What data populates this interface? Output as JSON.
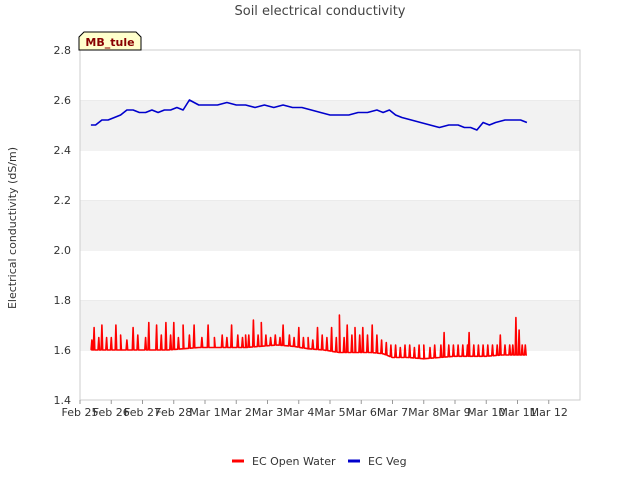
{
  "chart_data": {
    "type": "line",
    "title": "Soil electrical conductivity",
    "ylabel": "Electrical conductivity (dS/m)",
    "xlabel": "",
    "site_label": "MB_tule",
    "xlim": [
      0,
      16
    ],
    "ylim": [
      1.4,
      2.8
    ],
    "yticks": [
      1.4,
      1.6,
      1.8,
      2.0,
      2.2,
      2.4,
      2.6,
      2.8
    ],
    "ytick_labels": [
      "1.4",
      "1.6",
      "1.8",
      "2.0",
      "2.2",
      "2.4",
      "2.6",
      "2.8"
    ],
    "xtick_labels": [
      "Feb 25",
      "Feb 26",
      "Feb 27",
      "Feb 28",
      "Mar 1",
      "Mar 2",
      "Mar 3",
      "Mar 4",
      "Mar 5",
      "Mar 6",
      "Mar 7",
      "Mar 8",
      "Mar 9",
      "Mar 10",
      "Mar 11",
      "Mar 12"
    ],
    "grid_bands": true,
    "legend_position": "bottom-center",
    "series": [
      {
        "name": "EC Open Water",
        "color": "#ff0000",
        "x": [
          0.35,
          0.8,
          1.3,
          1.8,
          2.3,
          2.8,
          3.3,
          3.8,
          4.3,
          4.8,
          5.3,
          5.8,
          6.3,
          6.8,
          7.3,
          7.8,
          8.3,
          8.8,
          9.3,
          9.7,
          10.0,
          10.5,
          11.0,
          11.5,
          12.0,
          12.5,
          13.0,
          13.5,
          14.0,
          14.3
        ],
        "values": [
          1.6,
          1.6,
          1.6,
          1.6,
          1.6,
          1.6,
          1.605,
          1.61,
          1.61,
          1.61,
          1.61,
          1.615,
          1.62,
          1.615,
          1.605,
          1.6,
          1.59,
          1.59,
          1.59,
          1.585,
          1.57,
          1.57,
          1.565,
          1.57,
          1.575,
          1.575,
          1.575,
          1.58,
          1.58,
          1.58
        ],
        "spikes": [
          [
            0.38,
            1.64
          ],
          [
            0.45,
            1.69
          ],
          [
            0.6,
            1.65
          ],
          [
            0.7,
            1.7
          ],
          [
            0.85,
            1.65
          ],
          [
            1.0,
            1.65
          ],
          [
            1.15,
            1.7
          ],
          [
            1.3,
            1.66
          ],
          [
            1.5,
            1.64
          ],
          [
            1.7,
            1.69
          ],
          [
            1.85,
            1.66
          ],
          [
            2.1,
            1.65
          ],
          [
            2.2,
            1.71
          ],
          [
            2.45,
            1.7
          ],
          [
            2.6,
            1.66
          ],
          [
            2.75,
            1.71
          ],
          [
            2.9,
            1.66
          ],
          [
            3.0,
            1.71
          ],
          [
            3.15,
            1.65
          ],
          [
            3.3,
            1.7
          ],
          [
            3.5,
            1.66
          ],
          [
            3.65,
            1.7
          ],
          [
            3.9,
            1.65
          ],
          [
            4.1,
            1.7
          ],
          [
            4.3,
            1.65
          ],
          [
            4.55,
            1.66
          ],
          [
            4.7,
            1.65
          ],
          [
            4.85,
            1.7
          ],
          [
            5.05,
            1.66
          ],
          [
            5.2,
            1.65
          ],
          [
            5.3,
            1.66
          ],
          [
            5.4,
            1.66
          ],
          [
            5.55,
            1.72
          ],
          [
            5.7,
            1.66
          ],
          [
            5.8,
            1.71
          ],
          [
            5.95,
            1.66
          ],
          [
            6.1,
            1.65
          ],
          [
            6.25,
            1.66
          ],
          [
            6.4,
            1.65
          ],
          [
            6.5,
            1.7
          ],
          [
            6.7,
            1.66
          ],
          [
            6.85,
            1.65
          ],
          [
            7.0,
            1.69
          ],
          [
            7.15,
            1.65
          ],
          [
            7.3,
            1.65
          ],
          [
            7.45,
            1.64
          ],
          [
            7.6,
            1.69
          ],
          [
            7.75,
            1.66
          ],
          [
            7.9,
            1.65
          ],
          [
            8.05,
            1.69
          ],
          [
            8.2,
            1.65
          ],
          [
            8.3,
            1.74
          ],
          [
            8.45,
            1.65
          ],
          [
            8.55,
            1.7
          ],
          [
            8.7,
            1.66
          ],
          [
            8.8,
            1.69
          ],
          [
            8.95,
            1.66
          ],
          [
            9.05,
            1.69
          ],
          [
            9.2,
            1.66
          ],
          [
            9.35,
            1.7
          ],
          [
            9.5,
            1.66
          ],
          [
            9.65,
            1.64
          ],
          [
            9.8,
            1.63
          ],
          [
            9.95,
            1.62
          ],
          [
            10.1,
            1.62
          ],
          [
            10.25,
            1.61
          ],
          [
            10.4,
            1.62
          ],
          [
            10.55,
            1.62
          ],
          [
            10.7,
            1.61
          ],
          [
            10.85,
            1.62
          ],
          [
            11.0,
            1.62
          ],
          [
            11.2,
            1.61
          ],
          [
            11.35,
            1.62
          ],
          [
            11.55,
            1.62
          ],
          [
            11.65,
            1.67
          ],
          [
            11.8,
            1.62
          ],
          [
            11.95,
            1.62
          ],
          [
            12.1,
            1.62
          ],
          [
            12.25,
            1.62
          ],
          [
            12.4,
            1.62
          ],
          [
            12.45,
            1.67
          ],
          [
            12.6,
            1.62
          ],
          [
            12.75,
            1.62
          ],
          [
            12.9,
            1.62
          ],
          [
            13.05,
            1.62
          ],
          [
            13.2,
            1.62
          ],
          [
            13.35,
            1.62
          ],
          [
            13.45,
            1.66
          ],
          [
            13.6,
            1.62
          ],
          [
            13.75,
            1.62
          ],
          [
            13.85,
            1.62
          ],
          [
            13.95,
            1.73
          ],
          [
            14.05,
            1.68
          ],
          [
            14.15,
            1.62
          ],
          [
            14.25,
            1.62
          ]
        ]
      },
      {
        "name": "EC Veg",
        "color": "#0000cc",
        "x": [
          0.35,
          0.5,
          0.7,
          0.9,
          1.1,
          1.3,
          1.5,
          1.7,
          1.9,
          2.1,
          2.3,
          2.5,
          2.7,
          2.9,
          3.1,
          3.3,
          3.5,
          3.8,
          4.1,
          4.4,
          4.7,
          5.0,
          5.3,
          5.6,
          5.9,
          6.2,
          6.5,
          6.8,
          7.1,
          7.4,
          7.7,
          8.0,
          8.3,
          8.6,
          8.9,
          9.2,
          9.5,
          9.7,
          9.9,
          10.1,
          10.3,
          10.6,
          10.9,
          11.2,
          11.5,
          11.8,
          12.1,
          12.3,
          12.5,
          12.7,
          12.9,
          13.1,
          13.3,
          13.6,
          13.9,
          14.1,
          14.3
        ],
        "values": [
          2.5,
          2.5,
          2.52,
          2.52,
          2.53,
          2.54,
          2.56,
          2.56,
          2.55,
          2.55,
          2.56,
          2.55,
          2.56,
          2.56,
          2.57,
          2.56,
          2.6,
          2.58,
          2.58,
          2.58,
          2.59,
          2.58,
          2.58,
          2.57,
          2.58,
          2.57,
          2.58,
          2.57,
          2.57,
          2.56,
          2.55,
          2.54,
          2.54,
          2.54,
          2.55,
          2.55,
          2.56,
          2.55,
          2.56,
          2.54,
          2.53,
          2.52,
          2.51,
          2.5,
          2.49,
          2.5,
          2.5,
          2.49,
          2.49,
          2.48,
          2.51,
          2.5,
          2.51,
          2.52,
          2.52,
          2.52,
          2.51
        ]
      }
    ]
  }
}
